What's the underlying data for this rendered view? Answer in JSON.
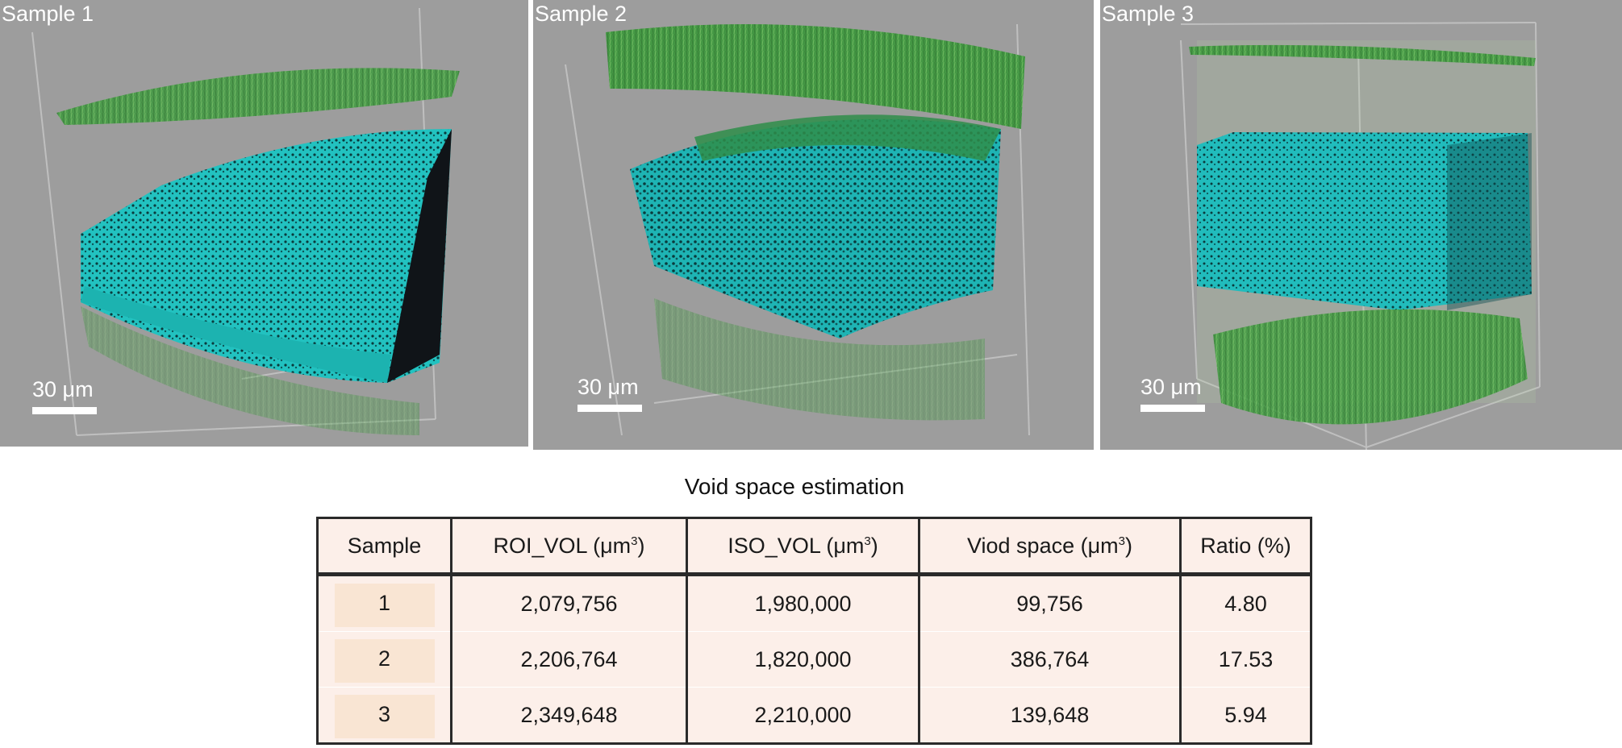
{
  "panels": [
    {
      "label": "Sample 1",
      "scale_label": "30 μm"
    },
    {
      "label": "Sample 2",
      "scale_label": "30 μm"
    },
    {
      "label": "Sample 3",
      "scale_label": "30 μm"
    }
  ],
  "table": {
    "title": "Void space estimation",
    "headers": {
      "sample": "Sample",
      "roi_vol": "ROI_VOL (μm",
      "iso_vol": "ISO_VOL (μm",
      "void_space": "Viod space (μm",
      "ratio": "Ratio (%)",
      "unit_exp": "3",
      "close_paren": ")"
    },
    "rows": [
      {
        "sample": "1",
        "roi_vol": "2,079,756",
        "iso_vol": "1,980,000",
        "void_space": "99,756",
        "ratio": "4.80"
      },
      {
        "sample": "2",
        "roi_vol": "2,206,764",
        "iso_vol": "1,820,000",
        "void_space": "386,764",
        "ratio": "17.53"
      },
      {
        "sample": "3",
        "roi_vol": "2,349,648",
        "iso_vol": "2,210,000",
        "void_space": "139,648",
        "ratio": "5.94"
      }
    ]
  },
  "colors": {
    "panel_bg": "#9d9d9d",
    "cyan": "#1fbcbc",
    "green": "#3f9a3f",
    "table_bg": "#fcefe9",
    "sample_chip": "#f9e5d3"
  }
}
